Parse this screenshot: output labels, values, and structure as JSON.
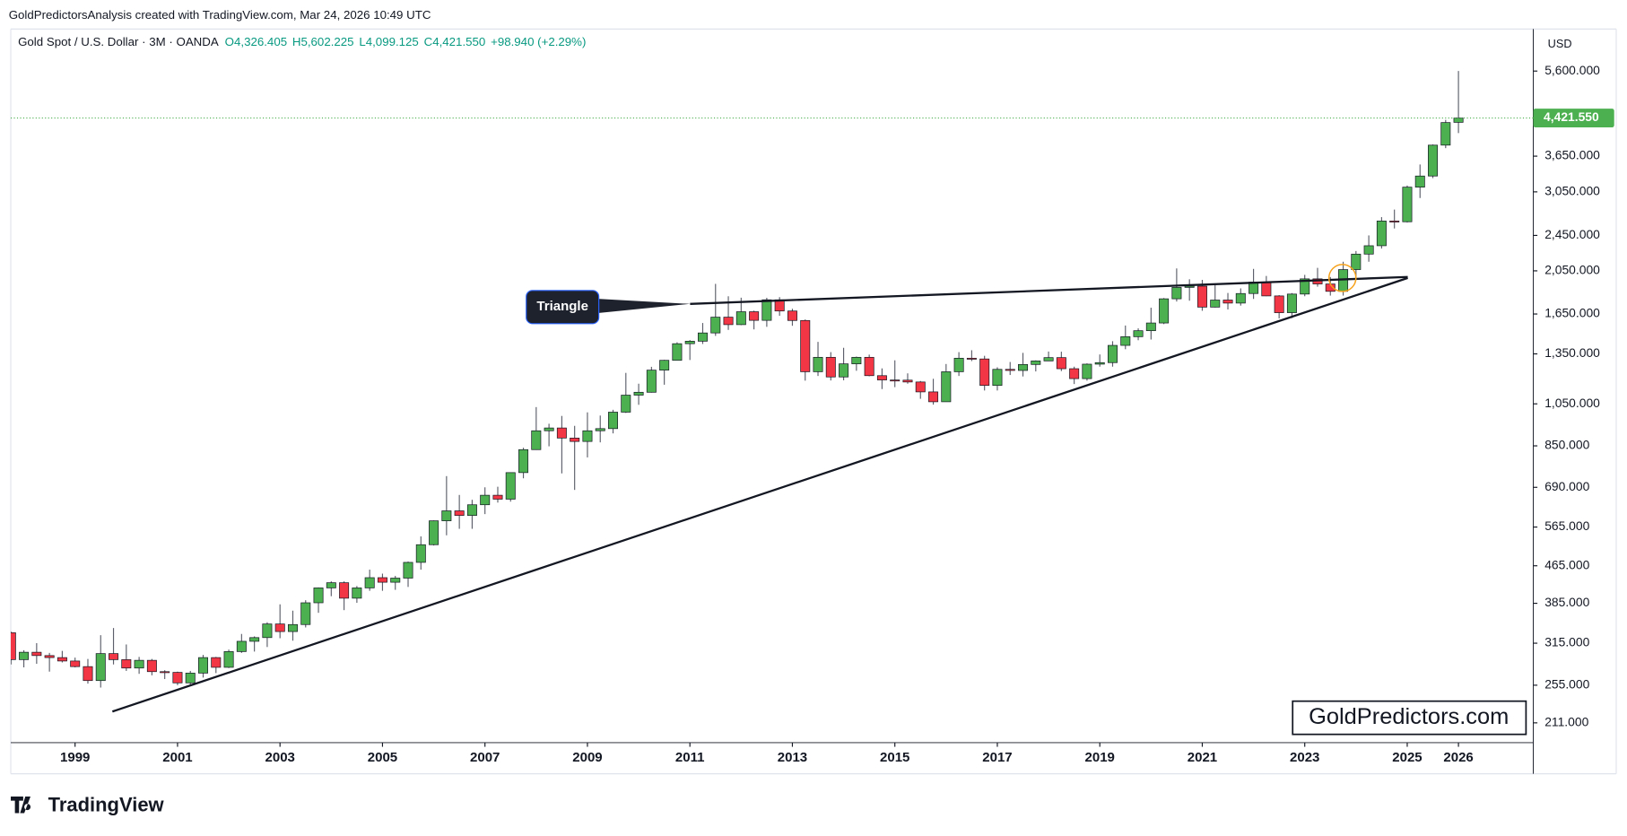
{
  "chart_data": {
    "type": "candlestick",
    "attribution": "GoldPredictorsAnalysis created with TradingView.com, Mar 24, 2026 10:49 UTC",
    "title": "Gold Spot / U.S. Dollar · 3M · OANDA",
    "ohlc_legend": [
      "O4,326.405",
      "H5,602.225",
      "L4,099.125",
      "C4,421.550",
      "+98.940 (+2.29%)"
    ],
    "currency": "USD",
    "annotation": "Triangle",
    "watermark": "GoldPredictors.com",
    "logo": "TradingView",
    "log_scale": true,
    "up_color": "#4caf50",
    "down_color": "#f23645",
    "wick_color": "#5d606b",
    "last_price": {
      "value": 4421.55,
      "label": "4,421.550"
    },
    "last_price_color": "#4caf50",
    "xlim": [
      1997.745,
      2027.46
    ],
    "xticks": [
      1999,
      2001,
      2003,
      2005,
      2007,
      2009,
      2011,
      2013,
      2015,
      2017,
      2019,
      2021,
      2023,
      2025,
      2026
    ],
    "ylim": [
      191,
      6918
    ],
    "yticks": [
      {
        "value": 5600,
        "label": "5,600.000"
      },
      {
        "value": 3650,
        "label": "3,650.000"
      },
      {
        "value": 3050,
        "label": "3,050.000"
      },
      {
        "value": 2450,
        "label": "2,450.000"
      },
      {
        "value": 2050,
        "label": "2,050.000"
      },
      {
        "value": 1650,
        "label": "1,650.000"
      },
      {
        "value": 1350,
        "label": "1,350.000"
      },
      {
        "value": 1050,
        "label": "1,050.000"
      },
      {
        "value": 850,
        "label": "850.000"
      },
      {
        "value": 690,
        "label": "690.000"
      },
      {
        "value": 565,
        "label": "565.000"
      },
      {
        "value": 465,
        "label": "465.000"
      },
      {
        "value": 385,
        "label": "385.000"
      },
      {
        "value": 315,
        "label": "315.000"
      },
      {
        "value": 255,
        "label": "255.000"
      },
      {
        "value": 211,
        "label": "211.000"
      }
    ],
    "x": [
      1997.75,
      1998,
      1998.25,
      1998.5,
      1998.75,
      1999,
      1999.25,
      1999.5,
      1999.75,
      2000,
      2000.25,
      2000.5,
      2000.75,
      2001,
      2001.25,
      2001.5,
      2001.75,
      2002,
      2002.25,
      2002.5,
      2002.75,
      2003,
      2003.25,
      2003.5,
      2003.75,
      2004,
      2004.25,
      2004.5,
      2004.75,
      2005,
      2005.25,
      2005.5,
      2005.75,
      2006,
      2006.25,
      2006.5,
      2006.75,
      2007,
      2007.25,
      2007.5,
      2007.75,
      2008,
      2008.25,
      2008.5,
      2008.75,
      2009,
      2009.25,
      2009.5,
      2009.75,
      2010,
      2010.25,
      2010.5,
      2010.75,
      2011,
      2011.25,
      2011.5,
      2011.75,
      2012,
      2012.25,
      2012.5,
      2012.75,
      2013,
      2013.25,
      2013.5,
      2013.75,
      2014,
      2014.25,
      2014.5,
      2014.75,
      2015,
      2015.25,
      2015.5,
      2015.75,
      2016,
      2016.25,
      2016.5,
      2016.75,
      2017,
      2017.25,
      2017.5,
      2017.75,
      2018,
      2018.25,
      2018.5,
      2018.75,
      2019,
      2019.25,
      2019.5,
      2019.75,
      2020,
      2020.25,
      2020.5,
      2020.75,
      2021,
      2021.25,
      2021.5,
      2021.75,
      2022,
      2022.25,
      2022.5,
      2022.75,
      2023,
      2023.25,
      2023.5,
      2023.75,
      2024,
      2024.25,
      2024.5,
      2024.75,
      2025,
      2025.25,
      2025.5,
      2025.75,
      2026
    ],
    "open": [
      332,
      290,
      301,
      296,
      293,
      288,
      280,
      261,
      299,
      290,
      278,
      289,
      273,
      272,
      258,
      271,
      293,
      279,
      302,
      318,
      324,
      347,
      334,
      346,
      386,
      416,
      427,
      395,
      416,
      438,
      428,
      437,
      473,
      517,
      583,
      613,
      599,
      632,
      663,
      650,
      743,
      834,
      917,
      930,
      884,
      869,
      917,
      927,
      1007,
      1097,
      1113,
      1244,
      1307,
      1421,
      1439,
      1500,
      1624,
      1564,
      1669,
      1598,
      1772,
      1675,
      1597,
      1234,
      1327,
      1202,
      1284,
      1327,
      1210,
      1184,
      1183,
      1172,
      1115,
      1061,
      1234,
      1321,
      1316,
      1152,
      1249,
      1242,
      1280,
      1303,
      1325,
      1253,
      1192,
      1282,
      1292,
      1409,
      1472,
      1517,
      1577,
      1781,
      1886,
      1898,
      1708,
      1770,
      1743,
      1829,
      1937,
      1807,
      1661,
      1824,
      1969,
      1919,
      1849,
      2063,
      2230,
      2326,
      2634,
      2624,
      3123,
      3303,
      3858,
      4326.405
    ],
    "high": [
      334,
      304,
      315,
      300,
      303,
      293,
      291,
      328,
      340,
      313,
      294,
      291,
      275,
      273,
      274,
      297,
      294,
      305,
      330,
      326,
      350,
      383,
      371,
      391,
      417,
      430,
      430,
      420,
      456,
      447,
      442,
      475,
      539,
      584,
      730,
      664,
      648,
      690,
      692,
      744,
      842,
      1033,
      950,
      988,
      940,
      1006,
      990,
      1019,
      1227,
      1162,
      1265,
      1310,
      1431,
      1447,
      1577,
      1920,
      1804,
      1791,
      1678,
      1790,
      1796,
      1694,
      1605,
      1434,
      1362,
      1392,
      1332,
      1345,
      1255,
      1307,
      1224,
      1178,
      1191,
      1283,
      1362,
      1375,
      1337,
      1262,
      1296,
      1357,
      1307,
      1366,
      1365,
      1266,
      1287,
      1346,
      1439,
      1557,
      1535,
      1703,
      1788,
      2075,
      1965,
      1959,
      1916,
      1834,
      1877,
      2070,
      1998,
      1814,
      1833,
      2009,
      2081,
      1987,
      2146,
      2265,
      2450,
      2686,
      2790,
      3149,
      3500,
      3871,
      4381,
      5602.225
    ],
    "low": [
      283,
      279,
      284,
      273,
      286,
      279,
      257,
      252,
      283,
      274,
      270,
      268,
      263,
      255,
      256,
      265,
      271,
      278,
      300,
      302,
      309,
      323,
      319,
      341,
      367,
      399,
      372,
      386,
      410,
      410,
      412,
      418,
      456,
      515,
      542,
      560,
      560,
      603,
      639,
      642,
      722,
      833,
      848,
      740,
      681,
      802,
      865,
      905,
      1003,
      1045,
      1111,
      1156,
      1306,
      1309,
      1419,
      1478,
      1523,
      1560,
      1527,
      1547,
      1635,
      1555,
      1180,
      1208,
      1181,
      1182,
      1240,
      1206,
      1131,
      1142,
      1162,
      1077,
      1046,
      1061,
      1208,
      1302,
      1123,
      1123,
      1214,
      1205,
      1236,
      1302,
      1238,
      1160,
      1180,
      1266,
      1266,
      1382,
      1446,
      1451,
      1568,
      1757,
      1764,
      1677,
      1705,
      1688,
      1721,
      1780,
      1805,
      1614,
      1616,
      1804,
      1893,
      1810,
      1810,
      1984,
      2146,
      2293,
      2537,
      2615,
      2957,
      3268,
      3800,
      4099.125
    ],
    "close": [
      290,
      301,
      296,
      293,
      288,
      280,
      261,
      299,
      290,
      278,
      289,
      273,
      272,
      258,
      271,
      293,
      279,
      302,
      318,
      324,
      347,
      334,
      346,
      386,
      416,
      427,
      395,
      416,
      438,
      428,
      437,
      473,
      517,
      583,
      613,
      599,
      632,
      663,
      650,
      743,
      834,
      917,
      930,
      884,
      869,
      917,
      927,
      1007,
      1097,
      1113,
      1244,
      1307,
      1421,
      1439,
      1500,
      1624,
      1564,
      1669,
      1598,
      1772,
      1675,
      1597,
      1234,
      1327,
      1202,
      1284,
      1327,
      1210,
      1184,
      1183,
      1172,
      1115,
      1061,
      1234,
      1321,
      1316,
      1152,
      1249,
      1242,
      1280,
      1303,
      1325,
      1253,
      1192,
      1282,
      1292,
      1409,
      1472,
      1517,
      1577,
      1781,
      1886,
      1898,
      1708,
      1770,
      1743,
      1829,
      1937,
      1807,
      1661,
      1824,
      1969,
      1919,
      1849,
      2063,
      2230,
      2326,
      2634,
      2624,
      3123,
      3303,
      3858,
      4322,
      4421.55
    ]
  }
}
